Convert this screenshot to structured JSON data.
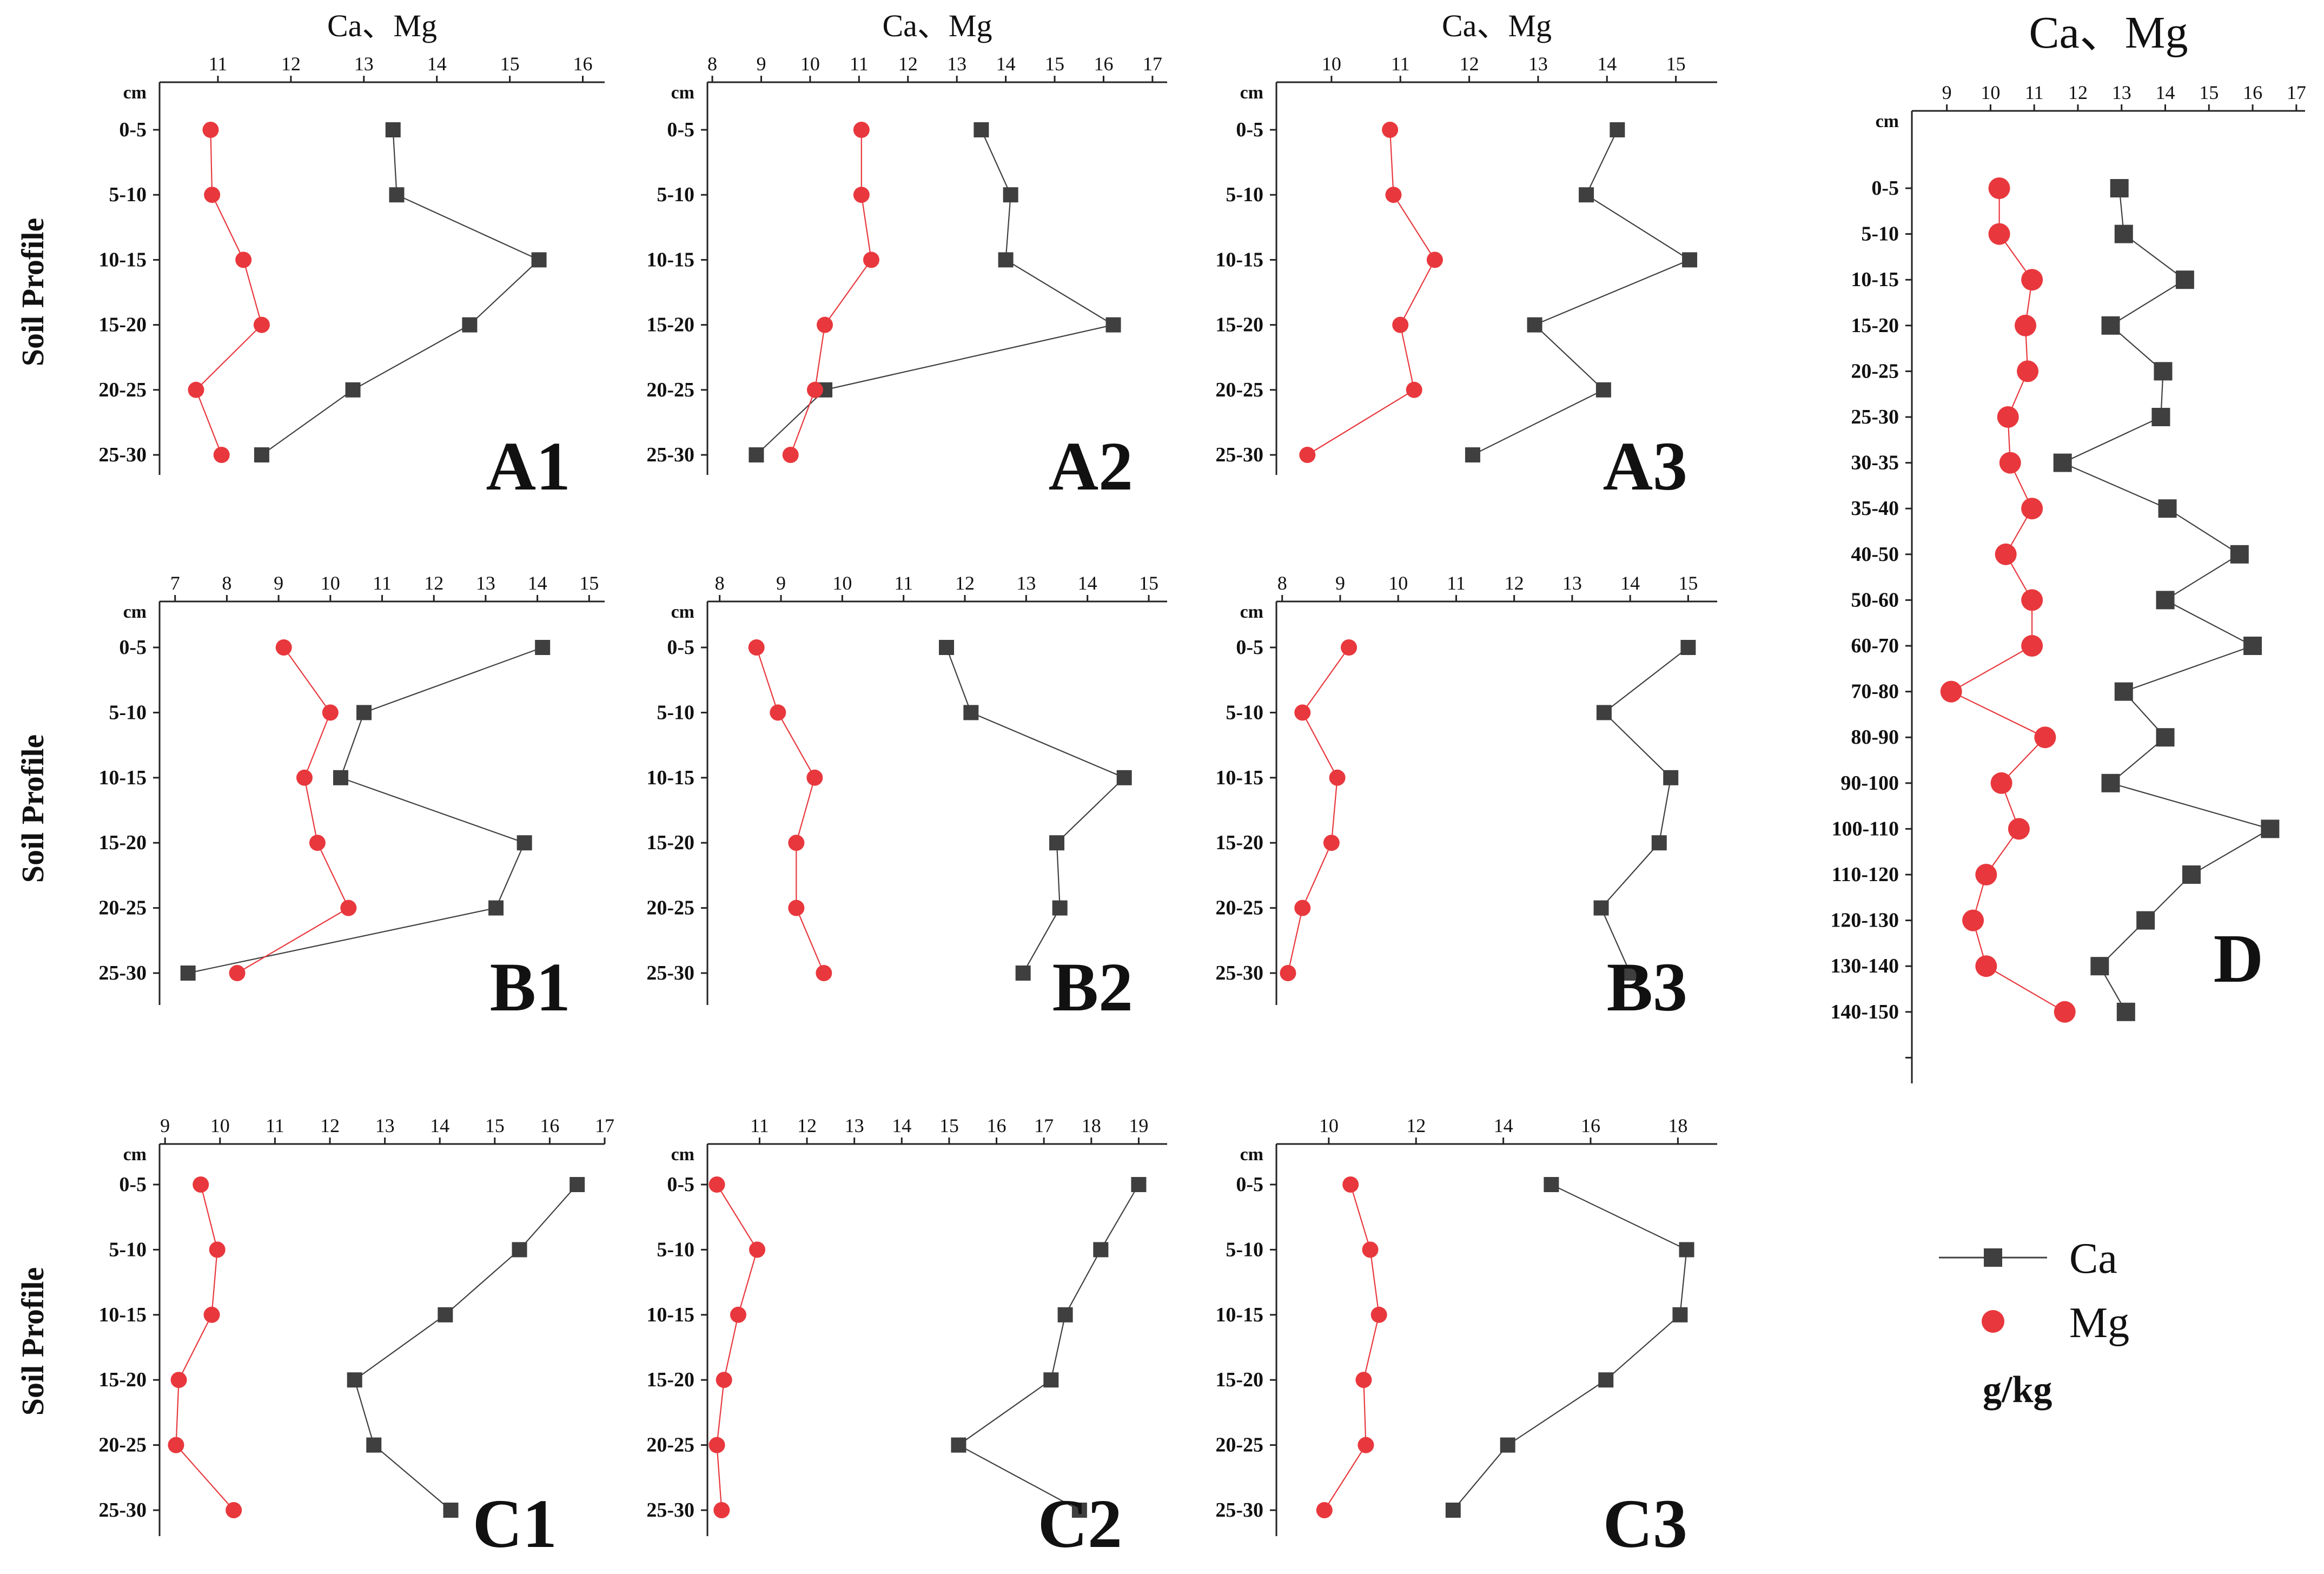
{
  "figure": {
    "ylabel": "Soil Profile",
    "depth_unit": "cm",
    "xaxis_title": "Ca、Mg",
    "legend": {
      "ca": "Ca",
      "mg": "Mg",
      "unit": "g/kg"
    },
    "colors": {
      "ca": "#3f3f3f",
      "mg": "#e8383d",
      "axis": "#222222"
    }
  },
  "chart_data": [
    {
      "id": "A1",
      "label": "A1",
      "type": "line",
      "title": "Ca、Mg",
      "xlabel": "Ca、Mg",
      "ylabel": "Soil Profile",
      "xlim": [
        10.2,
        16.3
      ],
      "xticks": [
        11,
        12,
        13,
        14,
        15,
        16
      ],
      "categories": [
        "0-5",
        "5-10",
        "10-15",
        "15-20",
        "20-25",
        "25-30"
      ],
      "series": [
        {
          "name": "Ca",
          "values": [
            13.4,
            13.45,
            15.4,
            14.45,
            12.85,
            11.6
          ]
        },
        {
          "name": "Mg",
          "values": [
            10.9,
            10.92,
            11.35,
            11.6,
            10.7,
            11.05
          ]
        }
      ]
    },
    {
      "id": "A2",
      "label": "A2",
      "type": "line",
      "title": "Ca、Mg",
      "xlabel": "Ca、Mg",
      "ylabel": "Soil Profile",
      "xlim": [
        7.9,
        17.3
      ],
      "xticks": [
        8,
        9,
        10,
        11,
        12,
        13,
        14,
        15,
        16,
        17
      ],
      "categories": [
        "0-5",
        "5-10",
        "10-15",
        "15-20",
        "20-25",
        "25-30"
      ],
      "series": [
        {
          "name": "Ca",
          "values": [
            13.5,
            14.1,
            14.0,
            16.2,
            10.3,
            8.9
          ]
        },
        {
          "name": "Mg",
          "values": [
            11.05,
            11.05,
            11.25,
            10.3,
            10.1,
            9.6
          ]
        }
      ]
    },
    {
      "id": "A3",
      "label": "A3",
      "type": "line",
      "title": "Ca、Mg",
      "xlabel": "Ca、Mg",
      "ylabel": "Soil Profile",
      "xlim": [
        9.2,
        15.6
      ],
      "xticks": [
        10,
        11,
        12,
        13,
        14,
        15
      ],
      "categories": [
        "0-5",
        "5-10",
        "10-15",
        "15-20",
        "20-25",
        "25-30"
      ],
      "series": [
        {
          "name": "Ca",
          "values": [
            14.15,
            13.7,
            15.2,
            12.95,
            13.95,
            12.05
          ]
        },
        {
          "name": "Mg",
          "values": [
            10.85,
            10.9,
            11.5,
            11.0,
            11.2,
            9.65
          ]
        }
      ]
    },
    {
      "id": "B1",
      "label": "B1",
      "type": "line",
      "title": "",
      "xlabel": "",
      "ylabel": "Soil Profile",
      "xlim": [
        6.7,
        15.3
      ],
      "xticks": [
        7,
        8,
        9,
        10,
        11,
        12,
        13,
        14,
        15
      ],
      "categories": [
        "0-5",
        "5-10",
        "10-15",
        "15-20",
        "20-25",
        "25-30"
      ],
      "series": [
        {
          "name": "Ca",
          "values": [
            14.1,
            10.65,
            10.2,
            13.75,
            13.2,
            7.25
          ]
        },
        {
          "name": "Mg",
          "values": [
            9.1,
            10.0,
            9.5,
            9.75,
            10.35,
            8.2
          ]
        }
      ]
    },
    {
      "id": "B2",
      "label": "B2",
      "type": "line",
      "title": "",
      "xlabel": "",
      "ylabel": "Soil Profile",
      "xlim": [
        7.8,
        15.3
      ],
      "xticks": [
        8,
        9,
        10,
        11,
        12,
        13,
        14,
        15
      ],
      "categories": [
        "0-5",
        "5-10",
        "10-15",
        "15-20",
        "20-25",
        "25-30"
      ],
      "series": [
        {
          "name": "Ca",
          "values": [
            11.7,
            12.1,
            14.6,
            13.5,
            13.55,
            12.95
          ]
        },
        {
          "name": "Mg",
          "values": [
            8.6,
            8.95,
            9.55,
            9.25,
            9.25,
            9.7
          ]
        }
      ]
    },
    {
      "id": "B3",
      "label": "B3",
      "type": "line",
      "title": "",
      "xlabel": "",
      "ylabel": "Soil Profile",
      "xlim": [
        7.9,
        15.5
      ],
      "xticks": [
        8,
        9,
        10,
        11,
        12,
        13,
        14,
        15
      ],
      "categories": [
        "0-5",
        "5-10",
        "10-15",
        "15-20",
        "20-25",
        "25-30"
      ],
      "series": [
        {
          "name": "Ca",
          "values": [
            15.0,
            13.55,
            14.7,
            14.5,
            13.5,
            14.0
          ]
        },
        {
          "name": "Mg",
          "values": [
            9.15,
            8.35,
            8.95,
            8.85,
            8.35,
            8.1
          ]
        }
      ]
    },
    {
      "id": "C1",
      "label": "C1",
      "type": "line",
      "title": "",
      "xlabel": "",
      "ylabel": "Soil Profile",
      "xlim": [
        8.9,
        17.0
      ],
      "xticks": [
        9,
        10,
        11,
        12,
        13,
        14,
        15,
        16,
        17
      ],
      "categories": [
        "0-5",
        "5-10",
        "10-15",
        "15-20",
        "20-25",
        "25-30"
      ],
      "series": [
        {
          "name": "Ca",
          "values": [
            16.5,
            15.45,
            14.1,
            12.45,
            12.8,
            14.2
          ]
        },
        {
          "name": "Mg",
          "values": [
            9.65,
            9.95,
            9.85,
            9.25,
            9.2,
            10.25
          ]
        }
      ]
    },
    {
      "id": "C2",
      "label": "C2",
      "type": "line",
      "title": "",
      "xlabel": "",
      "ylabel": "Soil Profile",
      "xlim": [
        9.9,
        19.6
      ],
      "xticks": [
        11,
        12,
        13,
        14,
        15,
        16,
        17,
        18,
        19
      ],
      "categories": [
        "0-5",
        "5-10",
        "10-15",
        "15-20",
        "20-25",
        "25-30"
      ],
      "series": [
        {
          "name": "Ca",
          "values": [
            19.0,
            18.2,
            17.45,
            17.15,
            15.2,
            17.75
          ]
        },
        {
          "name": "Mg",
          "values": [
            10.1,
            10.95,
            10.55,
            10.25,
            10.1,
            10.2
          ]
        }
      ]
    },
    {
      "id": "C3",
      "label": "C3",
      "type": "line",
      "title": "",
      "xlabel": "",
      "ylabel": "Soil Profile",
      "xlim": [
        8.8,
        18.9
      ],
      "xticks": [
        10,
        12,
        14,
        16,
        18
      ],
      "categories": [
        "0-5",
        "5-10",
        "10-15",
        "15-20",
        "20-25",
        "25-30"
      ],
      "series": [
        {
          "name": "Ca",
          "values": [
            15.1,
            18.2,
            18.05,
            16.35,
            14.1,
            12.85
          ]
        },
        {
          "name": "Mg",
          "values": [
            10.5,
            10.95,
            11.15,
            10.8,
            10.85,
            9.9
          ]
        }
      ]
    },
    {
      "id": "D",
      "label": "D",
      "type": "line",
      "title": "Ca、Mg",
      "xlabel": "Ca、Mg",
      "ylabel": "",
      "xlim": [
        8.2,
        17.2
      ],
      "xticks": [
        9,
        10,
        11,
        12,
        13,
        14,
        15,
        16,
        17
      ],
      "categories": [
        "0-5",
        "5-10",
        "10-15",
        "15-20",
        "20-25",
        "25-30",
        "30-35",
        "35-40",
        "40-50",
        "50-60",
        "60-70",
        "70-80",
        "80-90",
        "90-100",
        "100-110",
        "110-120",
        "120-130",
        "130-140",
        "140-150"
      ],
      "series": [
        {
          "name": "Ca",
          "values": [
            12.95,
            13.05,
            14.45,
            12.75,
            13.95,
            13.9,
            11.65,
            14.05,
            15.7,
            14.0,
            16.0,
            13.05,
            14.0,
            12.75,
            16.4,
            14.6,
            13.55,
            12.5,
            13.1
          ]
        },
        {
          "name": "Mg",
          "values": [
            10.2,
            10.2,
            10.95,
            10.8,
            10.85,
            10.4,
            10.45,
            10.95,
            10.35,
            10.95,
            10.95,
            9.1,
            11.25,
            10.25,
            10.65,
            9.9,
            9.6,
            9.9,
            11.7
          ]
        }
      ]
    }
  ]
}
